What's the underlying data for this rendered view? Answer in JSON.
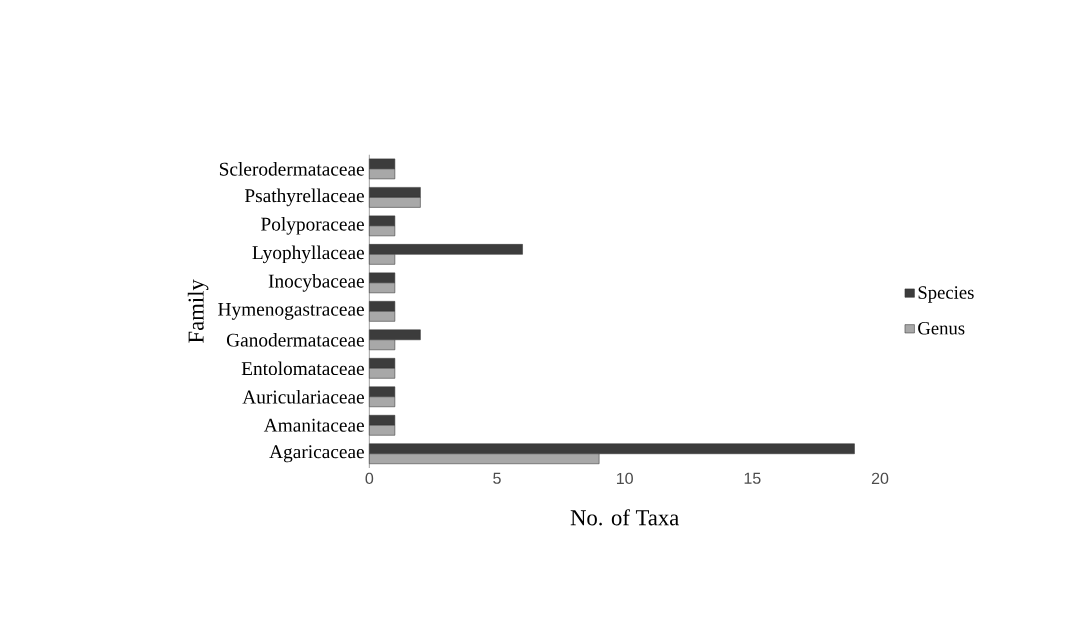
{
  "chart_data": {
    "type": "bar",
    "orientation": "horizontal",
    "xlabel": "No. of Taxa",
    "ylabel": "Family",
    "categories": [
      "Sclerodermataceae",
      "Psathyrellaceae",
      "Polyporaceae",
      "Lyophyllaceae",
      "Inocybaceae",
      "Hymenogastraceae",
      "Ganodermataceae",
      "Entolomataceae",
      "Auriculariaceae",
      "Amanitaceae",
      "Agaricaceae"
    ],
    "series": [
      {
        "name": "Species",
        "color": "#3c3c3c",
        "values": [
          1,
          2,
          1,
          6,
          1,
          1,
          2,
          1,
          1,
          1,
          19
        ]
      },
      {
        "name": "Genus",
        "color": "#a8a8a8",
        "values": [
          1,
          2,
          1,
          1,
          1,
          1,
          1,
          1,
          1,
          1,
          9
        ]
      }
    ],
    "xlim": [
      0,
      20
    ],
    "xticks": [
      0,
      5,
      10,
      15,
      20
    ],
    "grid": false,
    "legend": "right"
  }
}
